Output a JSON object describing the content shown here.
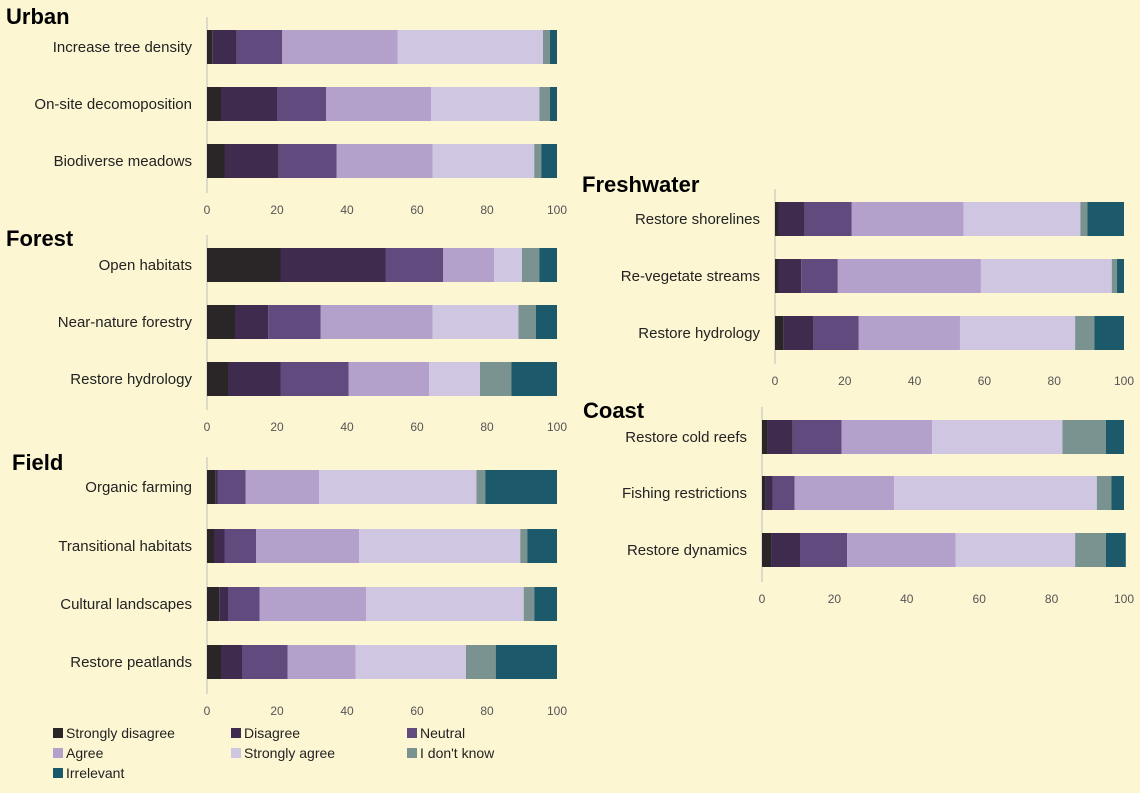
{
  "chart_data": {
    "type": "bar",
    "stacked": true,
    "orientation": "horizontal",
    "response_levels": [
      "Strongly disagree",
      "Disagree",
      "Neutral",
      "Agree",
      "Strongly agree",
      "I don't know",
      "Irrelevant"
    ],
    "colors": [
      "#2a2628",
      "#3e2b4e",
      "#614a7e",
      "#b3a1cb",
      "#cfc6e2",
      "#7a9390",
      "#1c5a6b"
    ],
    "xlim": [
      0,
      100
    ],
    "xticks": [
      0,
      20,
      40,
      60,
      80,
      100
    ],
    "panels": [
      {
        "title": "Urban",
        "categories": [
          "Increase tree density",
          "On-site decomoposition",
          "Biodiverse meadows"
        ],
        "values": [
          [
            1.5,
            7,
            13,
            33,
            41.5,
            2,
            2
          ],
          [
            4,
            16,
            14,
            30,
            31,
            3,
            2
          ],
          [
            5,
            15.5,
            16.5,
            27.5,
            29,
            2,
            4.5
          ]
        ]
      },
      {
        "title": "Forest",
        "categories": [
          "Open habitats",
          "Near-nature forestry",
          "Restore hydrology"
        ],
        "values": [
          [
            21,
            30,
            16.5,
            14.5,
            8,
            5,
            5
          ],
          [
            8,
            9.5,
            15,
            32,
            24.5,
            5,
            6
          ],
          [
            6,
            15,
            19.5,
            23,
            14.5,
            9,
            13
          ]
        ]
      },
      {
        "title": "Field",
        "categories": [
          "Organic farming",
          "Transitional habitats",
          "Cultural landscapes",
          "Restore peatlands"
        ],
        "values": [
          [
            2.5,
            0.5,
            8,
            21,
            45,
            2.5,
            20.5
          ],
          [
            2,
            3,
            9,
            29.5,
            46,
            2,
            8.5
          ],
          [
            3.5,
            2.5,
            9,
            30.5,
            45,
            3,
            6.5
          ],
          [
            4,
            6,
            13,
            19.5,
            31.5,
            8.5,
            17.5
          ]
        ]
      },
      {
        "title": "Freshwater",
        "categories": [
          "Restore shorelines",
          "Re-vegetate streams",
          "Restore hydrology"
        ],
        "values": [
          [
            1,
            7.5,
            13.5,
            32,
            33.5,
            2,
            10.5
          ],
          [
            1,
            6.5,
            10.5,
            41,
            37.5,
            1.5,
            2
          ],
          [
            2.5,
            8.5,
            13,
            29,
            33,
            5.5,
            8.5
          ]
        ]
      },
      {
        "title": "Coast",
        "categories": [
          "Restore cold reefs",
          "Fishing restrictions",
          "Restore dynamics"
        ],
        "values": [
          [
            1.5,
            7,
            13.5,
            25,
            36,
            12,
            5
          ],
          [
            1,
            2,
            6,
            27.5,
            56,
            4,
            3.5
          ],
          [
            2.5,
            8,
            13,
            30,
            33,
            8.5,
            5.5
          ]
        ]
      }
    ]
  }
}
